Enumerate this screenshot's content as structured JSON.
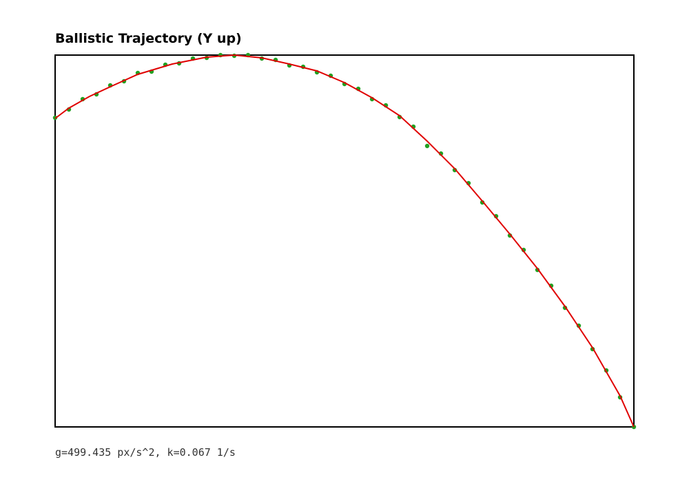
{
  "chart_data": {
    "type": "scatter",
    "title": "Ballistic Trajectory (Y up)",
    "annotation": "g=499.435 px/s^2, k=0.067 1/s",
    "xlim": [
      0,
      840
    ],
    "ylim": [
      0,
      540
    ],
    "series": [
      {
        "color": "#22a022",
        "mode": "markers",
        "x": [
          0,
          20,
          40,
          60,
          80,
          100,
          120,
          140,
          160,
          180,
          200,
          220,
          240,
          260,
          280,
          300,
          320,
          340,
          360,
          380,
          400,
          420,
          440,
          460,
          480,
          500,
          520,
          540,
          560,
          580,
          600,
          620,
          640,
          660,
          680,
          700,
          720,
          740,
          760,
          780,
          800,
          820,
          840
        ],
        "values": [
          449,
          461,
          476,
          483,
          496,
          502,
          514,
          516,
          526,
          528,
          535,
          536,
          540,
          539,
          540,
          535,
          533,
          525,
          523,
          515,
          510,
          498,
          491,
          476,
          467,
          450,
          436,
          408,
          397,
          373,
          354,
          326,
          306,
          278,
          257,
          228,
          205,
          173,
          147,
          113,
          82,
          43,
          0
        ]
      },
      {
        "color": "#e00000",
        "mode": "lines",
        "x": [
          0,
          20,
          50,
          80,
          120,
          170,
          220,
          260,
          300,
          340,
          380,
          420,
          460,
          500,
          540,
          580,
          620,
          660,
          700,
          740,
          780,
          820,
          840
        ],
        "values": [
          448,
          463,
          480,
          494,
          512,
          527,
          537,
          540,
          536,
          527,
          517,
          500,
          478,
          452,
          415,
          375,
          328,
          280,
          230,
          175,
          115,
          45,
          0
        ]
      }
    ]
  }
}
